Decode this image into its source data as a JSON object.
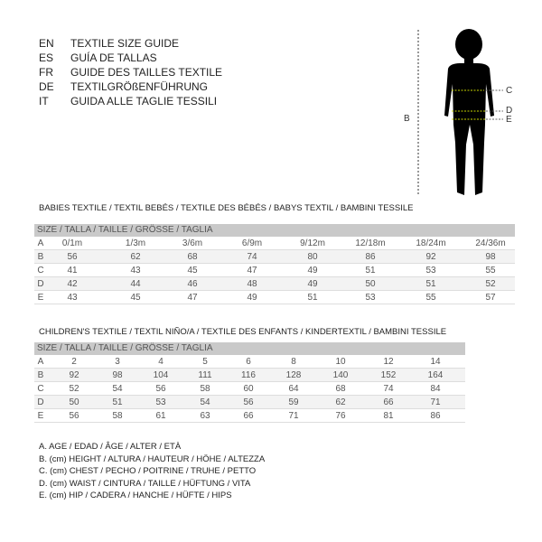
{
  "titles": [
    {
      "code": "EN",
      "text": "TEXTILE SIZE GUIDE"
    },
    {
      "code": "ES",
      "text": "GUÍA DE TALLAS"
    },
    {
      "code": "FR",
      "text": "GUIDE DES TAILLES TEXTILE"
    },
    {
      "code": "DE",
      "text": "TEXTILGRÖßENFÜHRUNG"
    },
    {
      "code": "IT",
      "text": "GUIDA ALLE TAGLIE TESSILI"
    }
  ],
  "figure": {
    "labels": {
      "b": "B",
      "c": "C",
      "d": "D",
      "e": "E"
    },
    "line_color": "#c8d400"
  },
  "babies": {
    "title": "BABIES TEXTILE / TEXTIL BEBÉS / TEXTILE DES BÉBÉS / BABYS TEXTIL  / BAMBINI TESSILE",
    "header": "SIZE / TALLA / TAILLE / GRÖSSE / TAGLIA",
    "rows": [
      {
        "key": "A",
        "values": [
          "0/1m",
          "1/3m",
          "3/6m",
          "6/9m",
          "9/12m",
          "12/18m",
          "18/24m",
          "24/36m"
        ]
      },
      {
        "key": "B",
        "values": [
          "56",
          "62",
          "68",
          "74",
          "80",
          "86",
          "92",
          "98"
        ]
      },
      {
        "key": "C",
        "values": [
          "41",
          "43",
          "45",
          "47",
          "49",
          "51",
          "53",
          "55"
        ]
      },
      {
        "key": "D",
        "values": [
          "42",
          "44",
          "46",
          "48",
          "49",
          "50",
          "51",
          "52"
        ]
      },
      {
        "key": "E",
        "values": [
          "43",
          "45",
          "47",
          "49",
          "51",
          "53",
          "55",
          "57"
        ]
      }
    ]
  },
  "children": {
    "title": "CHILDREN'S TEXTILE / TEXTIL NIÑO/A / TEXTILE DES ENFANTS / KINDERTEXTIL / BAMBINI TESSILE",
    "header": "SIZE / TALLA / TAILLE / GRÖSSE / TAGLIA",
    "rows": [
      {
        "key": "A",
        "values": [
          "2",
          "3",
          "4",
          "5",
          "6",
          "8",
          "10",
          "12",
          "14"
        ]
      },
      {
        "key": "B",
        "values": [
          "92",
          "98",
          "104",
          "111",
          "116",
          "128",
          "140",
          "152",
          "164"
        ]
      },
      {
        "key": "C",
        "values": [
          "52",
          "54",
          "56",
          "58",
          "60",
          "64",
          "68",
          "74",
          "84"
        ]
      },
      {
        "key": "D",
        "values": [
          "50",
          "51",
          "53",
          "54",
          "56",
          "59",
          "62",
          "66",
          "71"
        ]
      },
      {
        "key": "E",
        "values": [
          "56",
          "58",
          "61",
          "63",
          "66",
          "71",
          "76",
          "81",
          "86"
        ]
      }
    ]
  },
  "legend": [
    "A. AGE / EDAD / ÂGE / ALTER / ETÀ",
    "B. (cm) HEIGHT / ALTURA / HAUTEUR / HÖHE / ALTEZZA",
    "C. (cm) CHEST / PECHO / POITRINE / TRUHE / PETTO",
    "D. (cm) WAIST / CINTURA / TAILLE / HÜFTUNG / VITA",
    "E. (cm) HIP / CADERA / HANCHE / HÜFTE / HIPS"
  ]
}
